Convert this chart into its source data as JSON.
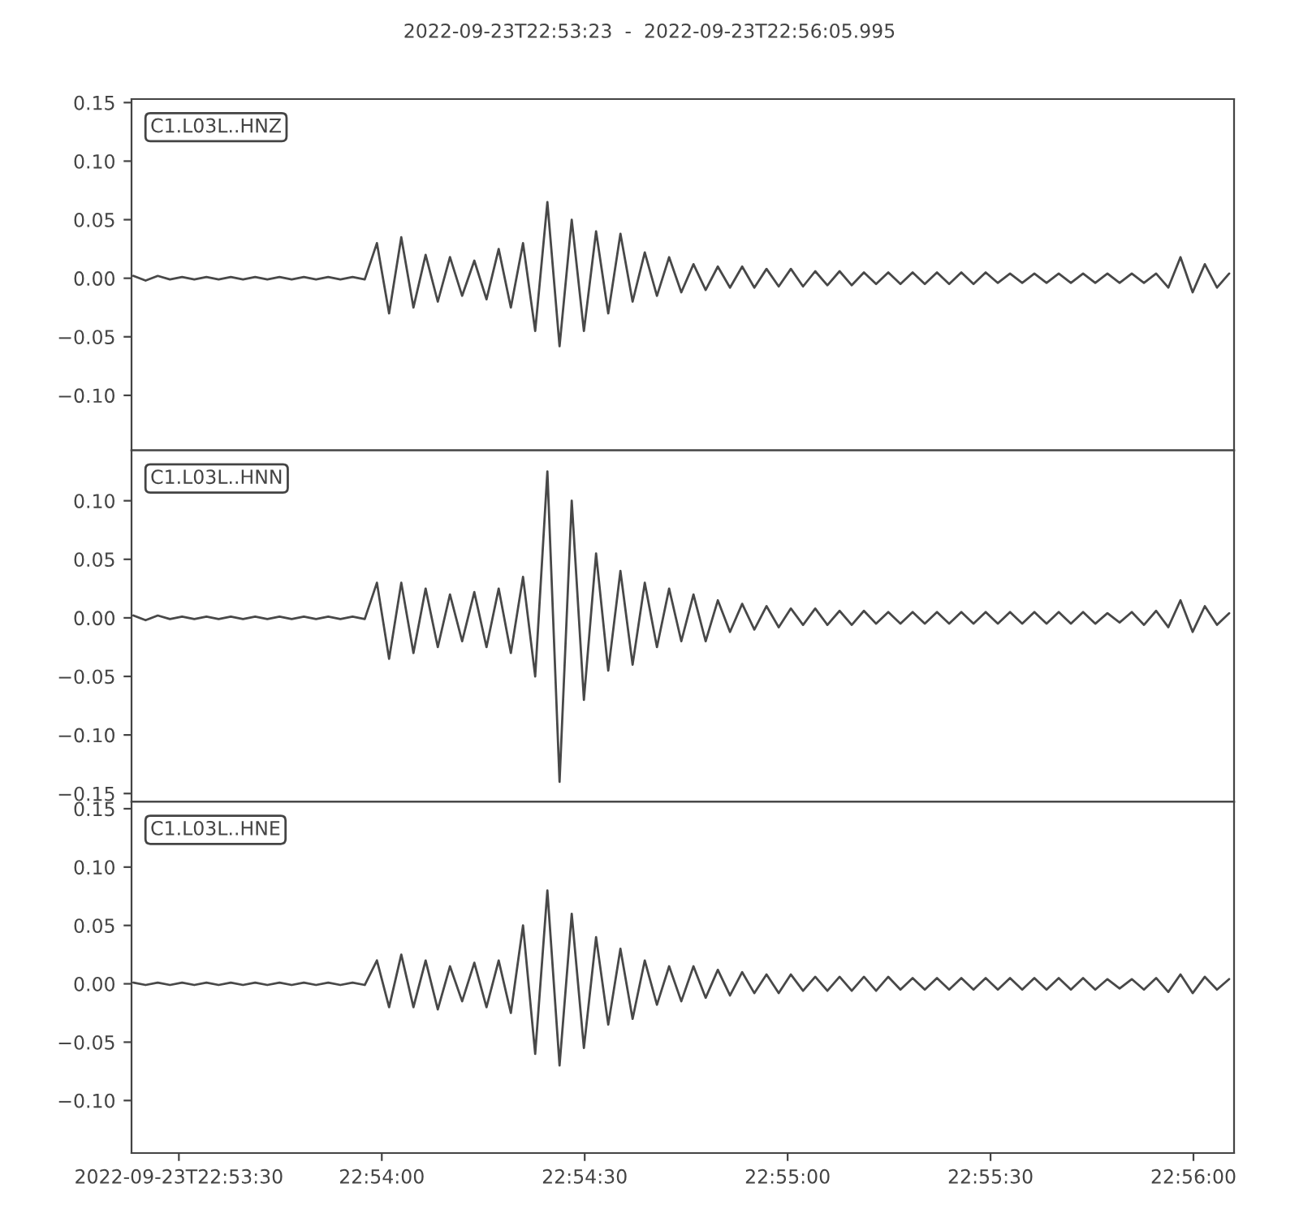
{
  "chart_data": [
    {
      "type": "line",
      "title": "2022-09-23T22:53:23  -  2022-09-23T22:56:05.995",
      "annotations": [
        "C1.L03L..HNZ"
      ],
      "tick_labels": "y",
      "x": [
        22.8898,
        22.8903,
        22.8908,
        22.8913,
        22.8918,
        22.8923,
        22.8928,
        22.8933,
        22.8938,
        22.8943,
        22.8948,
        22.8953,
        22.8958,
        22.8963,
        22.8968,
        22.8973,
        22.8978,
        22.8983,
        22.8988,
        22.8993,
        22.8998,
        22.9003,
        22.9008,
        22.9013,
        22.9018,
        22.9023,
        22.9028,
        22.9033,
        22.9038,
        22.9043,
        22.9048,
        22.9053,
        22.9058,
        22.9063,
        22.9068,
        22.9073,
        22.9078,
        22.9083,
        22.9088,
        22.9093,
        22.9098,
        22.9103,
        22.9108,
        22.9113,
        22.9118,
        22.9123,
        22.9128,
        22.9133,
        22.9138,
        22.9143,
        22.9148,
        22.9153,
        22.9158,
        22.9163,
        22.9168,
        22.9173,
        22.9178,
        22.9183,
        22.9188,
        22.9193,
        22.9198,
        22.9203,
        22.9208,
        22.9213,
        22.9218,
        22.9223,
        22.9228,
        22.9233,
        22.9238,
        22.9243,
        22.9248,
        22.9253,
        22.9258,
        22.9263,
        22.9268,
        22.9273,
        22.9278,
        22.9283,
        22.9288,
        22.9293,
        22.9298,
        22.9303,
        22.9308,
        22.9313,
        22.9318,
        22.9323,
        22.9328,
        22.9333,
        22.9338,
        22.9343,
        22.9348
      ],
      "series": [
        {
          "color": "#484848",
          "values": [
            0.002,
            -0.002,
            0.002,
            -0.001,
            0.001,
            -0.001,
            0.001,
            -0.001,
            0.001,
            -0.001,
            0.001,
            -0.001,
            0.001,
            -0.001,
            0.001,
            -0.001,
            0.001,
            -0.001,
            0.001,
            -0.001,
            0.03,
            -0.03,
            0.035,
            -0.025,
            0.02,
            -0.02,
            0.018,
            -0.015,
            0.015,
            -0.018,
            0.025,
            -0.025,
            0.03,
            -0.045,
            0.065,
            -0.058,
            0.05,
            -0.045,
            0.04,
            -0.03,
            0.038,
            -0.02,
            0.022,
            -0.015,
            0.018,
            -0.012,
            0.012,
            -0.01,
            0.01,
            -0.008,
            0.01,
            -0.008,
            0.008,
            -0.007,
            0.008,
            -0.007,
            0.006,
            -0.006,
            0.006,
            -0.006,
            0.005,
            -0.005,
            0.005,
            -0.005,
            0.005,
            -0.005,
            0.005,
            -0.005,
            0.005,
            -0.005,
            0.005,
            -0.004,
            0.004,
            -0.004,
            0.004,
            -0.004,
            0.004,
            -0.004,
            0.004,
            -0.004,
            0.004,
            -0.004,
            0.004,
            -0.004,
            0.004,
            -0.008,
            0.018,
            -0.012,
            0.012,
            -0.008,
            0.004
          ]
        }
      ],
      "xlim": [
        22.889722,
        22.935
      ],
      "ylim": [
        -0.147,
        0.153
      ],
      "yticks": [
        {
          "value": -0.1,
          "label": "−0.10"
        },
        {
          "value": -0.05,
          "label": "−0.05"
        },
        {
          "value": 0,
          "label": "0.00"
        },
        {
          "value": 0.05,
          "label": "0.05"
        },
        {
          "value": 0.1,
          "label": "0.10"
        },
        {
          "value": 0.15,
          "label": "0.15"
        }
      ]
    },
    {
      "type": "line",
      "annotations": [
        "C1.L03L..HNN"
      ],
      "tick_labels": "y",
      "x": [
        22.8898,
        22.8903,
        22.8908,
        22.8913,
        22.8918,
        22.8923,
        22.8928,
        22.8933,
        22.8938,
        22.8943,
        22.8948,
        22.8953,
        22.8958,
        22.8963,
        22.8968,
        22.8973,
        22.8978,
        22.8983,
        22.8988,
        22.8993,
        22.8998,
        22.9003,
        22.9008,
        22.9013,
        22.9018,
        22.9023,
        22.9028,
        22.9033,
        22.9038,
        22.9043,
        22.9048,
        22.9053,
        22.9058,
        22.9063,
        22.9068,
        22.9073,
        22.9078,
        22.9083,
        22.9088,
        22.9093,
        22.9098,
        22.9103,
        22.9108,
        22.9113,
        22.9118,
        22.9123,
        22.9128,
        22.9133,
        22.9138,
        22.9143,
        22.9148,
        22.9153,
        22.9158,
        22.9163,
        22.9168,
        22.9173,
        22.9178,
        22.9183,
        22.9188,
        22.9193,
        22.9198,
        22.9203,
        22.9208,
        22.9213,
        22.9218,
        22.9223,
        22.9228,
        22.9233,
        22.9238,
        22.9243,
        22.9248,
        22.9253,
        22.9258,
        22.9263,
        22.9268,
        22.9273,
        22.9278,
        22.9283,
        22.9288,
        22.9293,
        22.9298,
        22.9303,
        22.9308,
        22.9313,
        22.9318,
        22.9323,
        22.9328,
        22.9333,
        22.9338,
        22.9343,
        22.9348
      ],
      "series": [
        {
          "color": "#484848",
          "values": [
            0.002,
            -0.002,
            0.002,
            -0.001,
            0.001,
            -0.001,
            0.001,
            -0.001,
            0.001,
            -0.001,
            0.001,
            -0.001,
            0.001,
            -0.001,
            0.001,
            -0.001,
            0.001,
            -0.001,
            0.001,
            -0.001,
            0.03,
            -0.035,
            0.03,
            -0.03,
            0.025,
            -0.025,
            0.02,
            -0.02,
            0.022,
            -0.025,
            0.025,
            -0.03,
            0.035,
            -0.05,
            0.125,
            -0.14,
            0.1,
            -0.07,
            0.055,
            -0.045,
            0.04,
            -0.04,
            0.03,
            -0.025,
            0.025,
            -0.02,
            0.02,
            -0.02,
            0.015,
            -0.012,
            0.012,
            -0.01,
            0.01,
            -0.008,
            0.008,
            -0.006,
            0.008,
            -0.006,
            0.006,
            -0.006,
            0.006,
            -0.005,
            0.005,
            -0.005,
            0.005,
            -0.005,
            0.005,
            -0.005,
            0.005,
            -0.005,
            0.005,
            -0.005,
            0.005,
            -0.005,
            0.005,
            -0.005,
            0.005,
            -0.005,
            0.005,
            -0.005,
            0.004,
            -0.004,
            0.005,
            -0.006,
            0.006,
            -0.008,
            0.015,
            -0.012,
            0.01,
            -0.006,
            0.004
          ]
        }
      ],
      "xlim": [
        22.889722,
        22.935
      ],
      "ylim": [
        -0.157,
        0.143
      ],
      "yticks": [
        {
          "value": -0.15,
          "label": "−0.15"
        },
        {
          "value": -0.1,
          "label": "−0.10"
        },
        {
          "value": -0.05,
          "label": "−0.05"
        },
        {
          "value": 0,
          "label": "0.00"
        },
        {
          "value": 0.05,
          "label": "0.05"
        },
        {
          "value": 0.1,
          "label": "0.10"
        }
      ]
    },
    {
      "type": "line",
      "annotations": [
        "C1.L03L..HNE"
      ],
      "x": [
        22.8898,
        22.8903,
        22.8908,
        22.8913,
        22.8918,
        22.8923,
        22.8928,
        22.8933,
        22.8938,
        22.8943,
        22.8948,
        22.8953,
        22.8958,
        22.8963,
        22.8968,
        22.8973,
        22.8978,
        22.8983,
        22.8988,
        22.8993,
        22.8998,
        22.9003,
        22.9008,
        22.9013,
        22.9018,
        22.9023,
        22.9028,
        22.9033,
        22.9038,
        22.9043,
        22.9048,
        22.9053,
        22.9058,
        22.9063,
        22.9068,
        22.9073,
        22.9078,
        22.9083,
        22.9088,
        22.9093,
        22.9098,
        22.9103,
        22.9108,
        22.9113,
        22.9118,
        22.9123,
        22.9128,
        22.9133,
        22.9138,
        22.9143,
        22.9148,
        22.9153,
        22.9158,
        22.9163,
        22.9168,
        22.9173,
        22.9178,
        22.9183,
        22.9188,
        22.9193,
        22.9198,
        22.9203,
        22.9208,
        22.9213,
        22.9218,
        22.9223,
        22.9228,
        22.9233,
        22.9238,
        22.9243,
        22.9248,
        22.9253,
        22.9258,
        22.9263,
        22.9268,
        22.9273,
        22.9278,
        22.9283,
        22.9288,
        22.9293,
        22.9298,
        22.9303,
        22.9308,
        22.9313,
        22.9318,
        22.9323,
        22.9328,
        22.9333,
        22.9338,
        22.9343,
        22.9348
      ],
      "series": [
        {
          "color": "#484848",
          "values": [
            0.001,
            -0.001,
            0.001,
            -0.001,
            0.001,
            -0.001,
            0.001,
            -0.001,
            0.001,
            -0.001,
            0.001,
            -0.001,
            0.001,
            -0.001,
            0.001,
            -0.001,
            0.001,
            -0.001,
            0.001,
            -0.001,
            0.02,
            -0.02,
            0.025,
            -0.02,
            0.02,
            -0.022,
            0.015,
            -0.015,
            0.018,
            -0.02,
            0.02,
            -0.025,
            0.05,
            -0.06,
            0.08,
            -0.07,
            0.06,
            -0.055,
            0.04,
            -0.035,
            0.03,
            -0.03,
            0.02,
            -0.018,
            0.015,
            -0.015,
            0.015,
            -0.012,
            0.012,
            -0.01,
            0.01,
            -0.008,
            0.008,
            -0.008,
            0.008,
            -0.006,
            0.006,
            -0.006,
            0.006,
            -0.006,
            0.006,
            -0.006,
            0.006,
            -0.005,
            0.005,
            -0.005,
            0.005,
            -0.005,
            0.005,
            -0.005,
            0.005,
            -0.005,
            0.005,
            -0.005,
            0.005,
            -0.005,
            0.005,
            -0.005,
            0.005,
            -0.005,
            0.004,
            -0.004,
            0.004,
            -0.005,
            0.005,
            -0.007,
            0.008,
            -0.008,
            0.006,
            -0.005,
            0.004
          ]
        }
      ],
      "xlim": [
        22.889722,
        22.935
      ],
      "ylim": [
        -0.145,
        0.156
      ],
      "xticks": [
        {
          "value": 22.891667,
          "label": "2022-09-23T22:53:30"
        },
        {
          "value": 22.9,
          "label": "22:54:00"
        },
        {
          "value": 22.908333,
          "label": "22:54:30"
        },
        {
          "value": 22.916667,
          "label": "22:55:00"
        },
        {
          "value": 22.925,
          "label": "22:55:30"
        },
        {
          "value": 22.933333,
          "label": "22:56:00"
        }
      ],
      "yticks": [
        {
          "value": -0.1,
          "label": "−0.10"
        },
        {
          "value": -0.05,
          "label": "−0.05"
        },
        {
          "value": 0,
          "label": "0.00"
        },
        {
          "value": 0.05,
          "label": "0.05"
        },
        {
          "value": 0.1,
          "label": "0.10"
        },
        {
          "value": 0.15,
          "label": "0.15"
        }
      ]
    }
  ]
}
